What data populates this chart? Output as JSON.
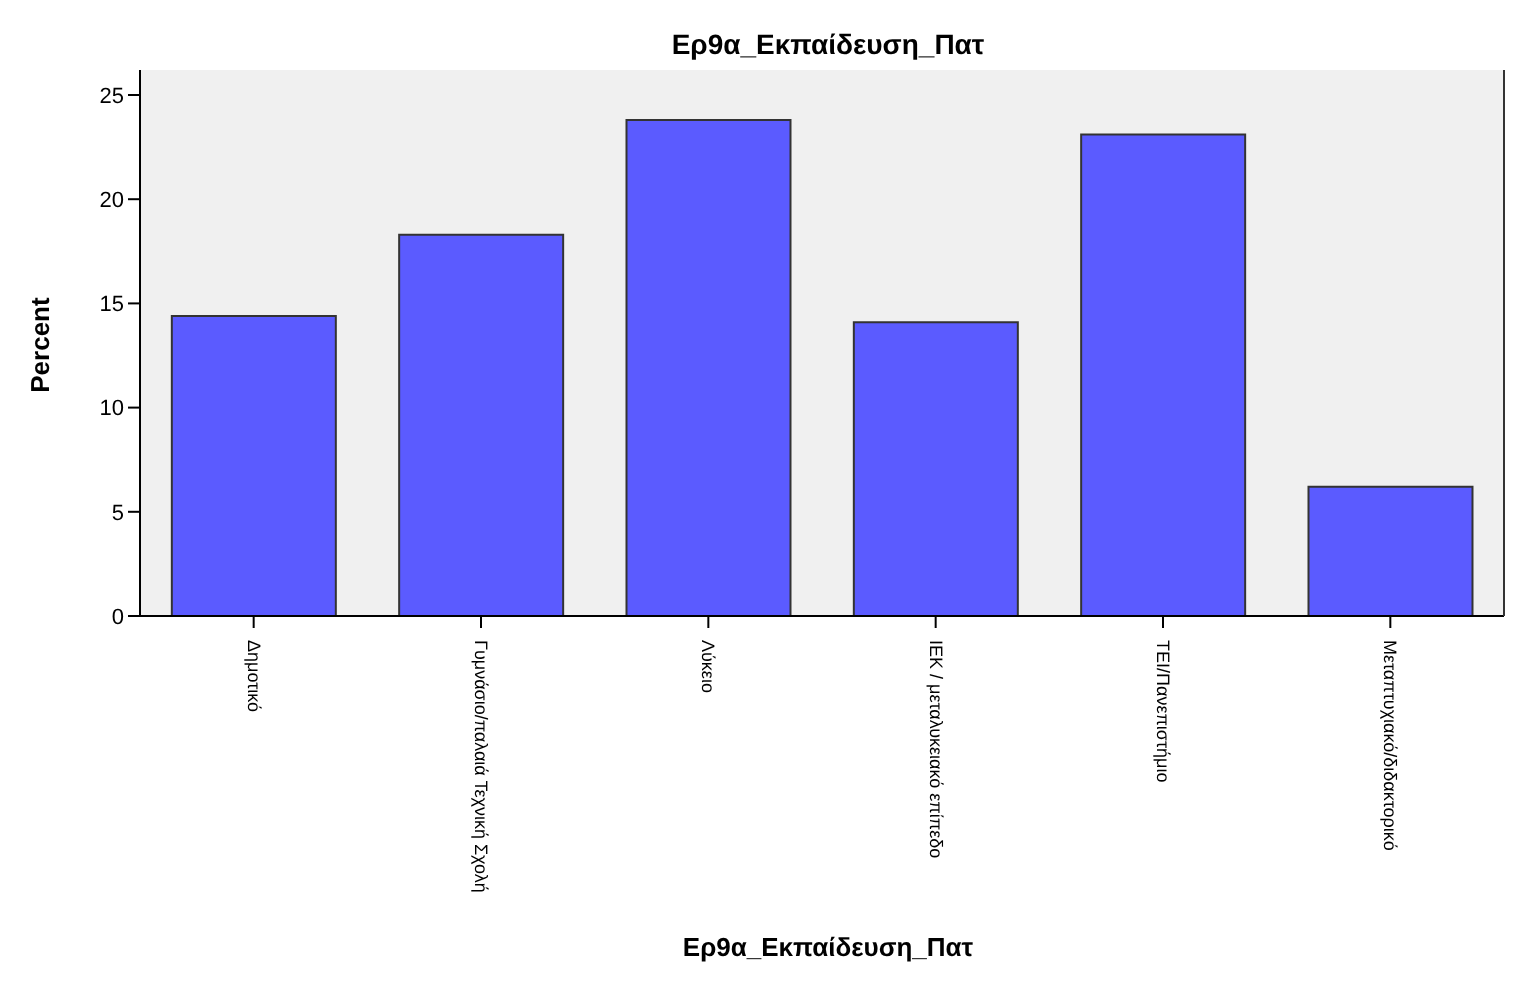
{
  "chart_data": {
    "type": "bar",
    "title": "Ερ9α_Εκπαίδευση_Πατ",
    "xlabel": "Ερ9α_Εκπαίδευση_Πατ",
    "ylabel": "Percent",
    "categories": [
      "Δημοτικό",
      "Γυμνάσιο/παλαιά Τεχνική Σχολή",
      "Λύκειο",
      "ΙΕΚ / μεταλυκειακό επίπεδο",
      "ΤΕΙ/Πανεπιστήμιο",
      "Μεταπτυχιακό/διδακτορικό"
    ],
    "values": [
      14.4,
      18.3,
      23.8,
      14.1,
      23.1,
      6.2
    ],
    "color": "#5b5bff",
    "ylim": [
      0,
      26.2
    ],
    "yticks": [
      0,
      5,
      10,
      15,
      20,
      25
    ],
    "grid": false
  }
}
